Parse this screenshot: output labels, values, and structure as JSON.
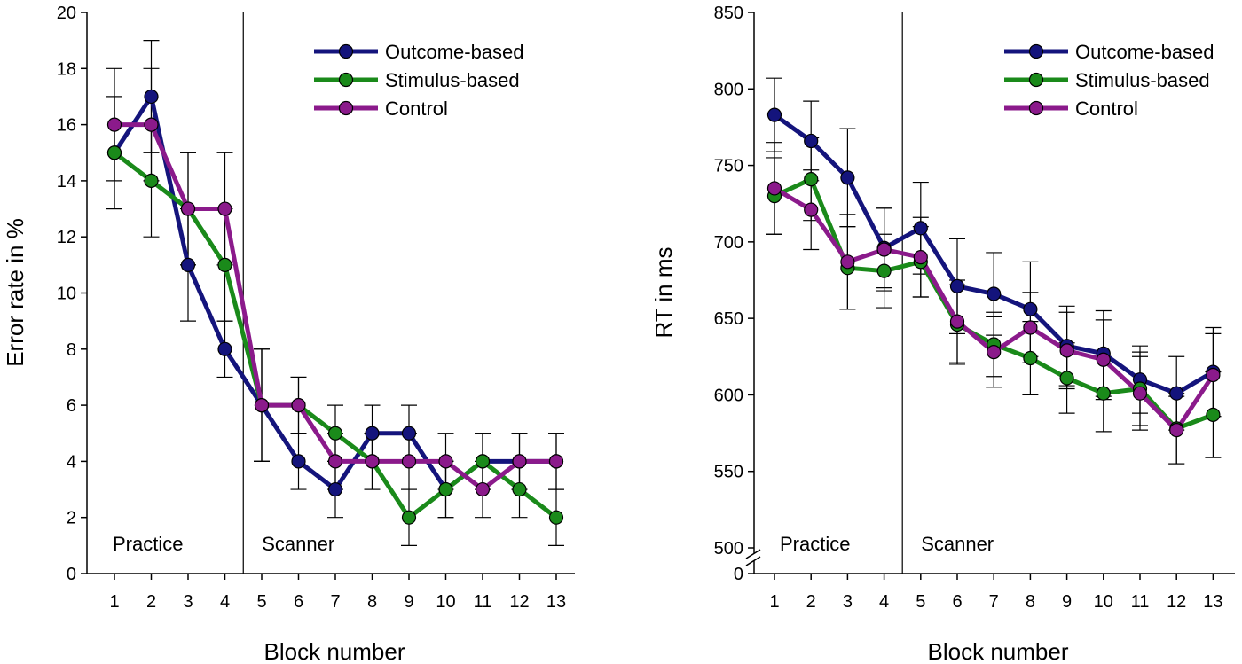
{
  "colors": {
    "outcome": "#14147c",
    "stimulus": "#1a8a1a",
    "control": "#8b1a8b",
    "axis": "#000000"
  },
  "chart_data": [
    {
      "type": "line",
      "xlabel": "Block number",
      "ylabel": "Error rate in %",
      "x": [
        1,
        2,
        3,
        4,
        5,
        6,
        7,
        8,
        9,
        10,
        11,
        12,
        13
      ],
      "xticks": [
        "1",
        "2",
        "3",
        "4",
        "5",
        "6",
        "7",
        "8",
        "9",
        "10",
        "11",
        "12",
        "13"
      ],
      "ylim": [
        0,
        20
      ],
      "yticks": [
        "0",
        "2",
        "4",
        "6",
        "8",
        "10",
        "12",
        "14",
        "16",
        "18",
        "20"
      ],
      "phase_divider_after_block": 4,
      "phases": [
        "Practice",
        "Scanner"
      ],
      "legend_position": "top-right",
      "series": [
        {
          "name": "Outcome-based",
          "key": "outcome",
          "values": [
            15,
            17,
            11,
            8,
            6,
            4,
            3,
            5,
            5,
            3,
            4,
            4,
            4
          ],
          "errors": [
            2,
            2,
            2,
            1,
            2,
            1,
            1,
            1,
            1,
            1,
            1,
            1,
            1
          ]
        },
        {
          "name": "Stimulus-based",
          "key": "stimulus",
          "values": [
            15,
            14,
            13,
            11,
            6,
            6,
            5,
            4,
            2,
            3,
            4,
            3,
            2
          ],
          "errors": [
            2,
            2,
            2,
            2,
            2,
            1,
            1,
            1,
            1,
            1,
            1,
            1,
            1
          ]
        },
        {
          "name": "Control",
          "key": "control",
          "values": [
            16,
            16,
            13,
            13,
            6,
            6,
            4,
            4,
            4,
            4,
            3,
            4,
            4
          ],
          "errors": [
            2,
            2,
            2,
            2,
            2,
            1,
            1,
            1,
            1,
            1,
            1,
            1,
            1
          ]
        }
      ]
    },
    {
      "type": "line",
      "xlabel": "Block number",
      "ylabel": "RT in ms",
      "x": [
        1,
        2,
        3,
        4,
        5,
        6,
        7,
        8,
        9,
        10,
        11,
        12,
        13
      ],
      "xticks": [
        "1",
        "2",
        "3",
        "4",
        "5",
        "6",
        "7",
        "8",
        "9",
        "10",
        "11",
        "12",
        "13"
      ],
      "ylim": [
        500,
        850
      ],
      "yticks": [
        "500",
        "550",
        "600",
        "650",
        "700",
        "750",
        "800",
        "850"
      ],
      "axis_break_label": "0",
      "phase_divider_after_block": 4,
      "phases": [
        "Practice",
        "Scanner"
      ],
      "legend_position": "top-right",
      "series": [
        {
          "name": "Outcome-based",
          "key": "outcome",
          "values": [
            783,
            766,
            742,
            696,
            709,
            671,
            666,
            656,
            632,
            627,
            610,
            601,
            615
          ],
          "errors": [
            24,
            26,
            32,
            26,
            30,
            31,
            27,
            31,
            26,
            28,
            22,
            24,
            29
          ]
        },
        {
          "name": "Stimulus-based",
          "key": "stimulus",
          "values": [
            730,
            741,
            683,
            681,
            687,
            646,
            633,
            624,
            611,
            601,
            604,
            578,
            587
          ],
          "errors": [
            25,
            27,
            27,
            24,
            23,
            26,
            21,
            24,
            23,
            25,
            24,
            23,
            28
          ]
        },
        {
          "name": "Control",
          "key": "control",
          "values": [
            735,
            721,
            687,
            695,
            690,
            648,
            628,
            644,
            629,
            623,
            601,
            577,
            613
          ],
          "errors": [
            30,
            26,
            31,
            27,
            26,
            27,
            23,
            23,
            25,
            26,
            24,
            22,
            27
          ]
        }
      ]
    }
  ]
}
